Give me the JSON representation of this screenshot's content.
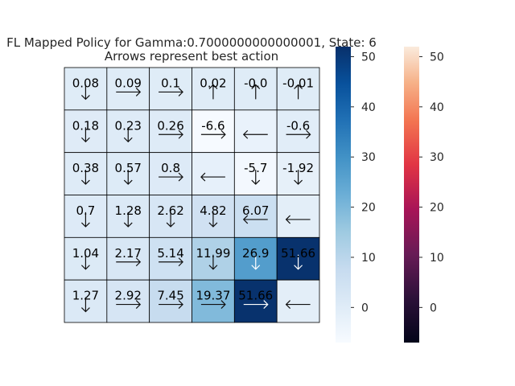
{
  "chart_data": {
    "type": "heatmap",
    "title": "FL Mapped Policy for Gamma:0.7000000000000001, State: 6",
    "subtitle": "Arrows represent best action",
    "rows": 6,
    "cols": 6,
    "values": [
      [
        0.08,
        0.09,
        0.1,
        0.02,
        -0.0,
        -0.01
      ],
      [
        0.18,
        0.23,
        0.26,
        -6.6,
        -3.0,
        -0.6
      ],
      [
        0.38,
        0.57,
        0.8,
        -2.0,
        -5.7,
        -1.92
      ],
      [
        0.7,
        1.28,
        2.62,
        4.82,
        6.07,
        -1.0
      ],
      [
        1.04,
        2.17,
        5.14,
        11.99,
        26.9,
        51.66
      ],
      [
        1.27,
        2.92,
        7.45,
        19.37,
        51.66,
        -1.0
      ]
    ],
    "labels": [
      [
        "0.08",
        "0.09",
        "0.1",
        "0.02",
        "-0.0",
        "-0.01"
      ],
      [
        "0.18",
        "0.23",
        "0.26",
        "-6.6",
        "",
        "-0.6"
      ],
      [
        "0.38",
        "0.57",
        "0.8",
        "",
        "-5.7",
        "-1.92"
      ],
      [
        "0.7",
        "1.28",
        "2.62",
        "4.82",
        "6.07",
        ""
      ],
      [
        "1.04",
        "2.17",
        "5.14",
        "11.99",
        "26.9",
        "51.66"
      ],
      [
        "1.27",
        "2.92",
        "7.45",
        "19.37",
        "51.66",
        ""
      ]
    ],
    "arrows": [
      [
        "down",
        "right",
        "right",
        "up",
        "up",
        "up"
      ],
      [
        "down",
        "down",
        "right",
        "right",
        "left",
        "right"
      ],
      [
        "down",
        "down",
        "right",
        "left",
        "down",
        "down"
      ],
      [
        "down",
        "down",
        "down",
        "down",
        "left",
        "left"
      ],
      [
        "down",
        "right",
        "right",
        "down",
        "down",
        "down"
      ],
      [
        "down",
        "right",
        "right",
        "right",
        "right",
        "left"
      ]
    ],
    "colorbar_main": {
      "colormap": "Blues",
      "vmin": -7,
      "vmax": 52,
      "ticks": [
        0,
        10,
        20,
        30,
        40,
        50
      ]
    },
    "colorbar_secondary": {
      "colormap": "rocket",
      "vmin": -7,
      "vmax": 52,
      "ticks": [
        0,
        10,
        20,
        30,
        40,
        50
      ]
    },
    "grid": true
  }
}
